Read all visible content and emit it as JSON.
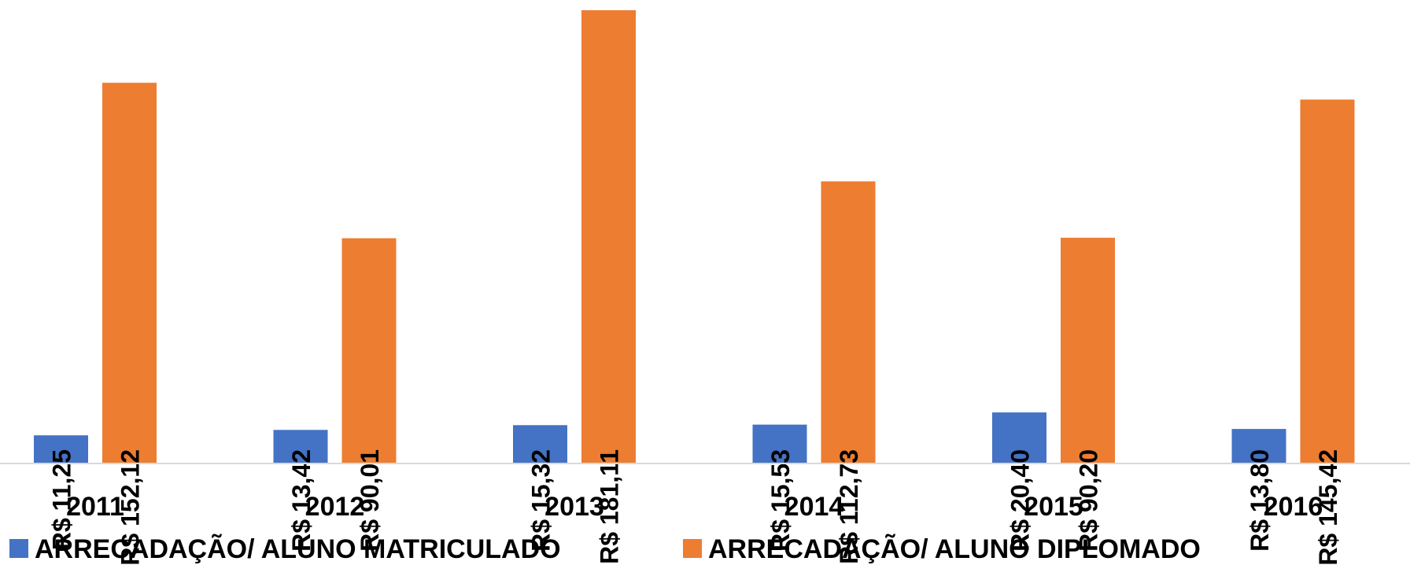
{
  "chart_data": {
    "type": "bar",
    "title": "",
    "xlabel": "",
    "ylabel": "",
    "categories": [
      "2011",
      "2012",
      "2013",
      "2014",
      "2015",
      "2016"
    ],
    "ylim": [
      0,
      181.11
    ],
    "grid": false,
    "legend_position": "bottom-left",
    "series": [
      {
        "name": "ARRECADAÇÃO/ ALUNO MATRICULADO",
        "color": "#4472C4",
        "values": [
          11.25,
          13.42,
          15.32,
          15.53,
          20.4,
          13.8
        ],
        "labels": [
          "R$ 11,25",
          "R$ 13,42",
          "R$ 15,32",
          "R$ 15,53",
          "R$ 20,40",
          "R$ 13,80"
        ]
      },
      {
        "name": "ARRECADAÇÃO/ ALUNO DIPLOMADO",
        "color": "#ED7D31",
        "values": [
          152.12,
          90.01,
          181.11,
          112.73,
          90.2,
          145.42
        ],
        "labels": [
          "R$ 152,12",
          "R$ 90,01",
          "R$ 181,11",
          "R$ 112,73",
          "R$ 90,20",
          "R$ 145,42"
        ]
      }
    ]
  }
}
